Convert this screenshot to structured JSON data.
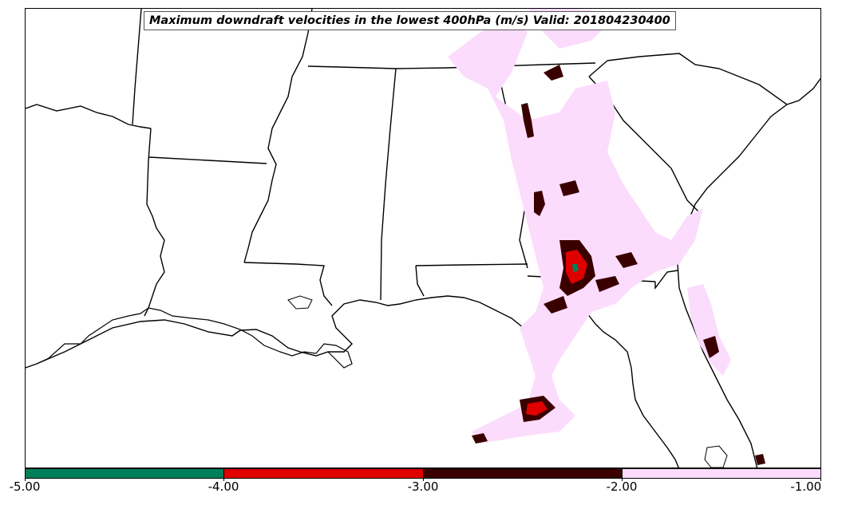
{
  "map": {
    "title": "Maximum downdraft velocities in the lowest 400hPa (m/s) Valid: 201804230400",
    "colors": {
      "level_-5_-4": "#00805a",
      "level_-4_-3": "#e00000",
      "level_-3_-2": "#3a0000",
      "level_-2_-1": "#fcdcfc"
    }
  },
  "colorbar": {
    "ticks": [
      "-5.00",
      "-4.00",
      "-3.00",
      "-2.00",
      "-1.00"
    ],
    "segments": [
      {
        "color": "#00805a"
      },
      {
        "color": "#e00000"
      },
      {
        "color": "#3a0000"
      },
      {
        "color": "#fcdcfc"
      }
    ]
  }
}
